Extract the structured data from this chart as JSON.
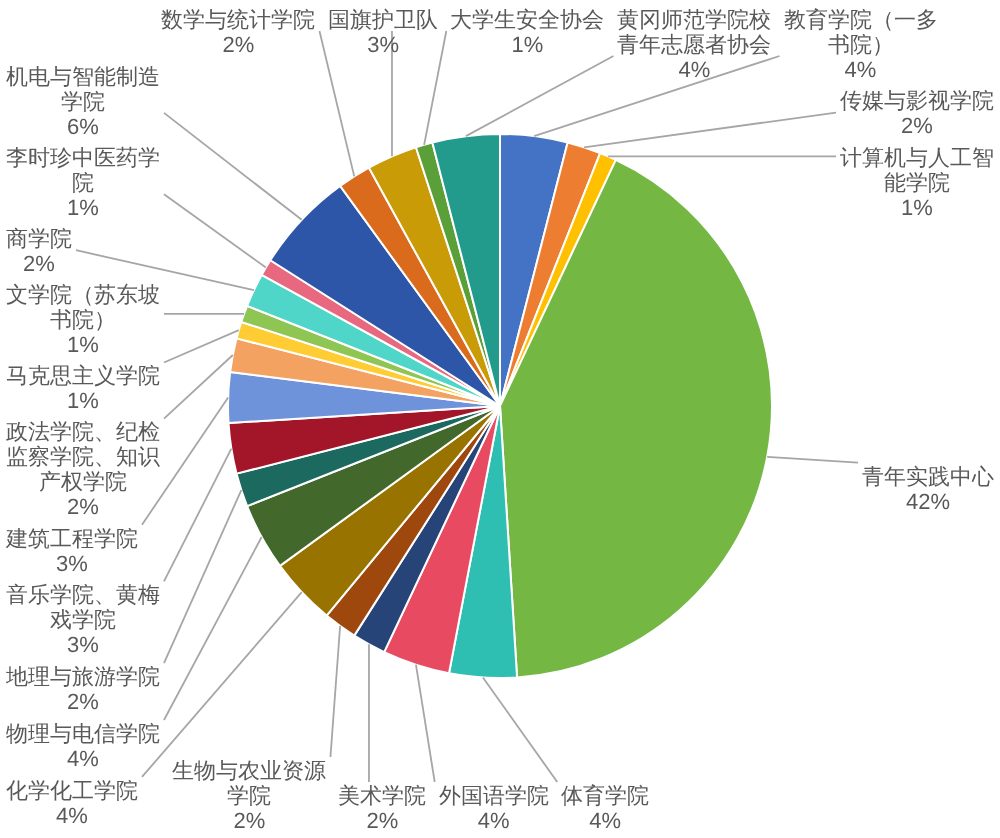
{
  "chart_data": {
    "type": "pie",
    "categories": [
      "教育学院（一多书院）",
      "传媒与影视学院",
      "计算机与人工智能学院",
      "青年实践中心",
      "体育学院",
      "外国语学院",
      "美术学院",
      "生物与农业资源学院",
      "化学化工学院",
      "物理与电信学院",
      "地理与旅游学院",
      "音乐学院、黄梅戏学院",
      "建筑工程学院",
      "政法学院、纪检监察学院、知识产权学院",
      "马克思主义学院",
      "文学院（苏东坡书院）",
      "商学院",
      "李时珍中医药学院",
      "机电与智能制造学院",
      "数学与统计学院",
      "国旗护卫队",
      "大学生安全协会",
      "黄冈师范学院校青年志愿者协会"
    ],
    "values": [
      4,
      2,
      1,
      42,
      4,
      4,
      2,
      2,
      4,
      4,
      2,
      3,
      3,
      2,
      1,
      1,
      2,
      1,
      6,
      2,
      3,
      1,
      4
    ],
    "value_labels": [
      "4%",
      "2%",
      "1%",
      "42%",
      "4%",
      "4%",
      "2%",
      "2%",
      "4%",
      "4%",
      "2%",
      "3%",
      "3%",
      "2%",
      "1%",
      "1%",
      "2%",
      "1%",
      "6%",
      "2%",
      "3%",
      "1%",
      "4%"
    ],
    "colors": [
      "#4472c4",
      "#ed7d31",
      "#ffc000",
      "#74b843",
      "#2fbfb2",
      "#e84b61",
      "#264478",
      "#9e480e",
      "#997300",
      "#43682b",
      "#1b695f",
      "#a31629",
      "#6e93da",
      "#f4a261",
      "#ffcc33",
      "#8fc653",
      "#4fd6c8",
      "#e8697f",
      "#2e56a8",
      "#db6b1c",
      "#c99b06",
      "#5b9f38",
      "#229b8d"
    ]
  }
}
